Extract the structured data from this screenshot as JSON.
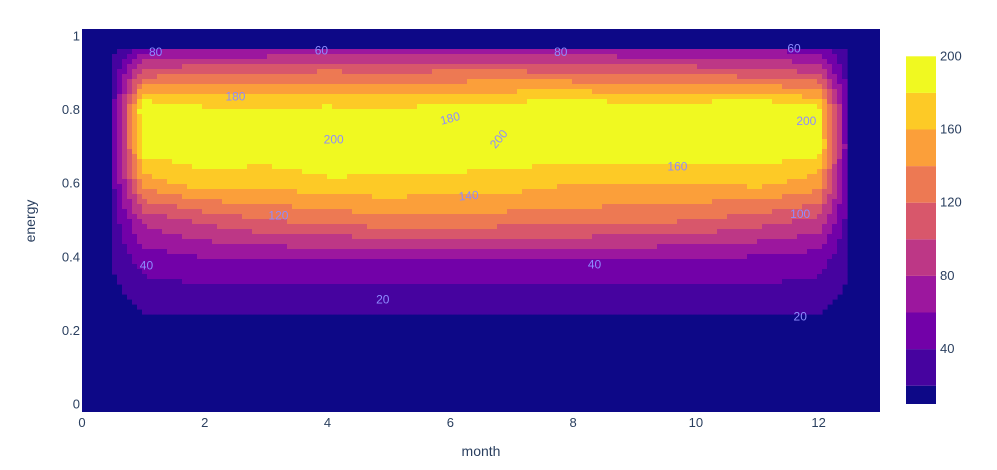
{
  "chart_data": {
    "type": "contour",
    "title": "",
    "xlabel": "month",
    "ylabel": "energy",
    "xlim": [
      0,
      13
    ],
    "ylim": [
      -0.02,
      1.02
    ],
    "x_ticks": [
      0,
      2,
      4,
      6,
      8,
      10,
      12
    ],
    "y_ticks": [
      0,
      0.2,
      0.4,
      0.6,
      0.8,
      1
    ],
    "y_tick_labels": [
      "0",
      "0.2",
      "0.4",
      "0.6",
      "0.8",
      "1"
    ],
    "colorscale": [
      "#0d0887",
      "#46039f",
      "#7201a8",
      "#9c179e",
      "#bd3786",
      "#d8576b",
      "#ed7953",
      "#fb9f3a",
      "#fdca26",
      "#f0f921"
    ],
    "contour_levels": [
      20,
      40,
      60,
      80,
      100,
      120,
      140,
      160,
      180,
      200
    ],
    "colorbar": {
      "ticks": [
        40,
        80,
        120,
        160,
        200
      ],
      "min": 10,
      "max": 210
    },
    "z_grid": {
      "x": [
        0.5,
        1,
        2,
        3,
        4,
        5,
        6,
        7,
        8,
        9,
        10,
        11,
        12,
        12.5
      ],
      "y": [
        0.2,
        0.3,
        0.4,
        0.5,
        0.6,
        0.7,
        0.8,
        0.9,
        0.97
      ],
      "z": [
        [
          6,
          10,
          10,
          10,
          10,
          10,
          10,
          10,
          10,
          10,
          10,
          10,
          10,
          6
        ],
        [
          14,
          30,
          32,
          33,
          33,
          33,
          33,
          33,
          33,
          33,
          33,
          33,
          30,
          14
        ],
        [
          22,
          50,
          60,
          63,
          62,
          62,
          63,
          62,
          63,
          62,
          62,
          58,
          52,
          22
        ],
        [
          30,
          85,
          105,
          120,
          125,
          135,
          135,
          130,
          130,
          125,
          120,
          110,
          95,
          30
        ],
        [
          34,
          150,
          170,
          165,
          175,
          175,
          170,
          170,
          160,
          160,
          160,
          165,
          150,
          34
        ],
        [
          36,
          192,
          196,
          195,
          202,
          198,
          202,
          195,
          196,
          198,
          195,
          196,
          190,
          36
        ],
        [
          34,
          203,
          185,
          185,
          186,
          183,
          190,
          195,
          202,
          195,
          198,
          206,
          188,
          34
        ],
        [
          26,
          110,
          120,
          120,
          125,
          122,
          125,
          125,
          122,
          118,
          115,
          110,
          100,
          26
        ],
        [
          12,
          48,
          55,
          58,
          60,
          60,
          60,
          60,
          60,
          58,
          58,
          55,
          48,
          12
        ]
      ]
    },
    "contour_labels": [
      {
        "text": "80",
        "x": 1.2,
        "y": 0.955,
        "angle": 0
      },
      {
        "text": "60",
        "x": 3.9,
        "y": 0.96,
        "angle": 0
      },
      {
        "text": "80",
        "x": 7.8,
        "y": 0.955,
        "angle": 0
      },
      {
        "text": "60",
        "x": 11.6,
        "y": 0.965,
        "angle": 0
      },
      {
        "text": "180",
        "x": 2.5,
        "y": 0.835,
        "angle": 0
      },
      {
        "text": "180",
        "x": 6.0,
        "y": 0.775,
        "angle": -15
      },
      {
        "text": "200",
        "x": 4.1,
        "y": 0.718,
        "angle": 0
      },
      {
        "text": "200",
        "x": 6.8,
        "y": 0.72,
        "angle": -50
      },
      {
        "text": "200",
        "x": 11.8,
        "y": 0.768,
        "angle": 0
      },
      {
        "text": "160",
        "x": 9.7,
        "y": 0.645,
        "angle": 0
      },
      {
        "text": "140",
        "x": 6.3,
        "y": 0.565,
        "angle": -5
      },
      {
        "text": "120",
        "x": 3.2,
        "y": 0.512,
        "angle": 0
      },
      {
        "text": "100",
        "x": 11.7,
        "y": 0.515,
        "angle": 0
      },
      {
        "text": "40",
        "x": 1.05,
        "y": 0.376,
        "angle": 0
      },
      {
        "text": "40",
        "x": 8.35,
        "y": 0.378,
        "angle": 0
      },
      {
        "text": "20",
        "x": 4.9,
        "y": 0.283,
        "angle": 0
      },
      {
        "text": "20",
        "x": 11.7,
        "y": 0.237,
        "angle": 0
      }
    ]
  }
}
